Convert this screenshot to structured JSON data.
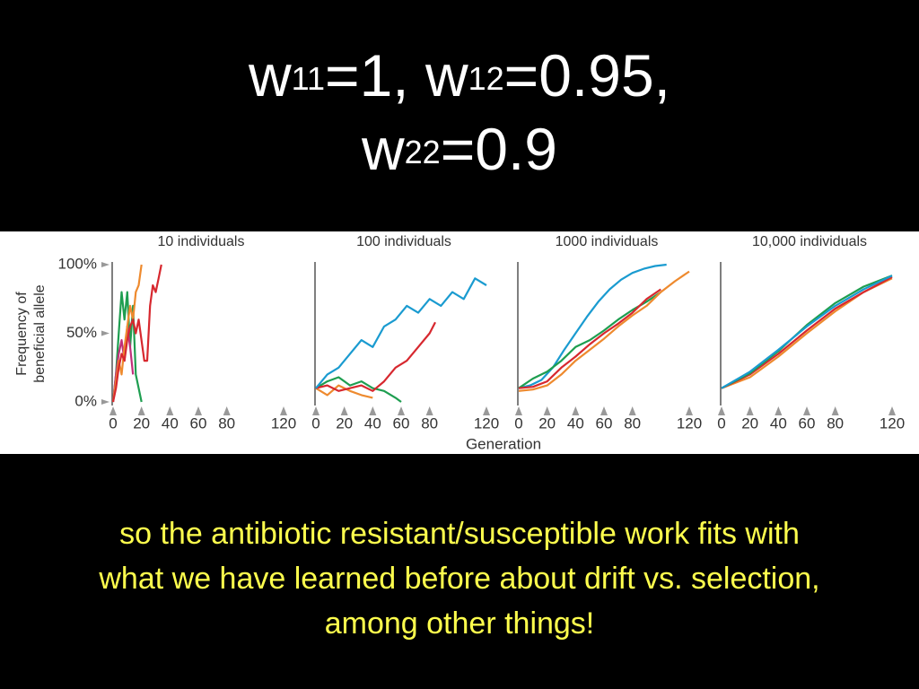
{
  "title": {
    "line1": [
      "w",
      "11",
      "=1, w",
      "12",
      "=0.95,"
    ],
    "line2": [
      "w",
      "22",
      "=0.9"
    ]
  },
  "caption": [
    "so the antibiotic resistant/susceptible work fits with",
    "what we have learned before about drift vs. selection,",
    "among other things!"
  ],
  "chart_data": [
    {
      "type": "line",
      "title": "10 individuals",
      "ylabel": [
        "Frequency of",
        "beneficial allele"
      ],
      "xlim": [
        0,
        120
      ],
      "ylim": [
        0,
        100
      ],
      "xticks": [
        0,
        20,
        40,
        60,
        80,
        120
      ],
      "yticks": [
        {
          "value": 0,
          "label": "0%"
        },
        {
          "value": 50,
          "label": "50%"
        },
        {
          "value": 100,
          "label": "100%"
        }
      ],
      "series": [
        {
          "color": "#1e9e50",
          "x": [
            0,
            2,
            4,
            6,
            8,
            10,
            12,
            14,
            16,
            18,
            20
          ],
          "values": [
            0,
            20,
            50,
            80,
            60,
            80,
            40,
            70,
            20,
            10,
            0
          ]
        },
        {
          "color": "#c0307a",
          "x": [
            0,
            2,
            4,
            6,
            8,
            10,
            12,
            14
          ],
          "values": [
            0,
            20,
            35,
            45,
            30,
            55,
            40,
            20
          ]
        },
        {
          "color": "#ee8a2e",
          "x": [
            0,
            2,
            4,
            6,
            8,
            10,
            12,
            14,
            16,
            18,
            20
          ],
          "values": [
            0,
            15,
            30,
            20,
            40,
            55,
            70,
            60,
            80,
            85,
            100
          ]
        },
        {
          "color": "#d7282f",
          "x": [
            0,
            2,
            4,
            6,
            8,
            10,
            12,
            14,
            16,
            18,
            22,
            24,
            26,
            28,
            30,
            32,
            34
          ],
          "values": [
            0,
            10,
            25,
            35,
            30,
            45,
            55,
            60,
            50,
            60,
            30,
            30,
            70,
            85,
            80,
            90,
            100
          ]
        }
      ]
    },
    {
      "type": "line",
      "title": "100 individuals",
      "xlabel": "Generation",
      "xlim": [
        0,
        120
      ],
      "ylim": [
        0,
        100
      ],
      "xticks": [
        0,
        20,
        40,
        60,
        80,
        120
      ],
      "series": [
        {
          "color": "#ee8a2e",
          "x": [
            0,
            8,
            16,
            24,
            32,
            40
          ],
          "values": [
            10,
            5,
            12,
            8,
            5,
            3
          ]
        },
        {
          "color": "#1e9e50",
          "x": [
            0,
            8,
            16,
            24,
            32,
            40,
            48,
            56,
            60
          ],
          "values": [
            10,
            15,
            18,
            12,
            15,
            10,
            8,
            3,
            0
          ]
        },
        {
          "color": "#d7282f",
          "x": [
            0,
            8,
            16,
            24,
            32,
            40,
            48,
            56,
            64,
            72,
            80,
            84
          ],
          "values": [
            10,
            12,
            8,
            10,
            12,
            8,
            15,
            25,
            30,
            40,
            50,
            58
          ]
        },
        {
          "color": "#1a9bd0",
          "x": [
            0,
            8,
            16,
            24,
            32,
            40,
            48,
            56,
            64,
            72,
            80,
            88,
            96,
            104,
            112,
            120
          ],
          "values": [
            10,
            20,
            25,
            35,
            45,
            40,
            55,
            60,
            70,
            65,
            75,
            70,
            80,
            75,
            90,
            85
          ]
        }
      ]
    },
    {
      "type": "line",
      "title": "1000 individuals",
      "xlim": [
        0,
        120
      ],
      "ylim": [
        0,
        100
      ],
      "xticks": [
        0,
        20,
        40,
        60,
        80,
        120
      ],
      "series": [
        {
          "color": "#1a9bd0",
          "x": [
            0,
            8,
            16,
            24,
            32,
            40,
            48,
            56,
            64,
            72,
            80,
            88,
            96,
            104
          ],
          "values": [
            10,
            12,
            16,
            25,
            38,
            50,
            62,
            73,
            82,
            89,
            94,
            97,
            99,
            100
          ]
        },
        {
          "color": "#1e9e50",
          "x": [
            0,
            10,
            20,
            30,
            40,
            50,
            60,
            70,
            80,
            90,
            100
          ],
          "values": [
            10,
            17,
            22,
            30,
            40,
            45,
            52,
            60,
            67,
            73,
            80
          ]
        },
        {
          "color": "#d7282f",
          "x": [
            0,
            10,
            20,
            30,
            40,
            50,
            60,
            70,
            80,
            90,
            100
          ],
          "values": [
            10,
            11,
            15,
            25,
            33,
            42,
            50,
            57,
            65,
            75,
            82
          ]
        },
        {
          "color": "#ee8a2e",
          "x": [
            0,
            10,
            20,
            30,
            40,
            50,
            60,
            70,
            80,
            90,
            100,
            110,
            120
          ],
          "values": [
            8,
            9,
            12,
            20,
            30,
            38,
            46,
            55,
            63,
            70,
            80,
            88,
            95
          ]
        }
      ]
    },
    {
      "type": "line",
      "title": "10,000 individuals",
      "xlim": [
        0,
        120
      ],
      "ylim": [
        0,
        100
      ],
      "xticks": [
        0,
        20,
        40,
        60,
        80,
        120
      ],
      "series": [
        {
          "color": "#ee8a2e",
          "x": [
            0,
            20,
            40,
            60,
            80,
            100,
            120
          ],
          "values": [
            10,
            18,
            33,
            50,
            66,
            80,
            90
          ]
        },
        {
          "color": "#d7282f",
          "x": [
            0,
            20,
            40,
            60,
            80,
            100,
            120
          ],
          "values": [
            10,
            20,
            35,
            52,
            68,
            80,
            91
          ]
        },
        {
          "color": "#1e9e50",
          "x": [
            0,
            20,
            40,
            60,
            80,
            100,
            120
          ],
          "values": [
            10,
            21,
            37,
            56,
            72,
            84,
            92
          ]
        },
        {
          "color": "#1a9bd0",
          "x": [
            0,
            20,
            40,
            60,
            80,
            100,
            120
          ],
          "values": [
            10,
            22,
            38,
            55,
            70,
            82,
            92
          ]
        }
      ]
    }
  ]
}
